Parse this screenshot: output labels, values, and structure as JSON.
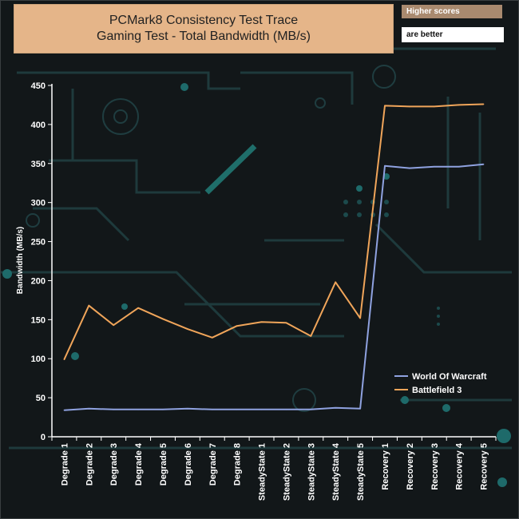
{
  "title_lines": [
    "PCMark8 Consistency Test Trace",
    "Gaming Test - Total Bandwidth (MB/s)"
  ],
  "badge": {
    "line1": "Higher scores",
    "line2": "are better"
  },
  "colors": {
    "series1": "#8fa2e0",
    "series2": "#f0a55a",
    "title_bg": "#e5b589",
    "plot_bg": "#121719"
  },
  "chart_data": {
    "type": "line",
    "ylabel": "Bandwidth (MB/s)",
    "xlabel": "",
    "ylim": [
      0,
      450
    ],
    "yticks": [
      0,
      50,
      100,
      150,
      200,
      250,
      300,
      350,
      400,
      450
    ],
    "grid": false,
    "legend_position": "bottom-right",
    "categories": [
      "Degrade 1",
      "Degrade 2",
      "Degrade 3",
      "Degrade 4",
      "Degrade 5",
      "Degrade 6",
      "Degrade 7",
      "Degrade 8",
      "SteadyState 1",
      "SteadyState 2",
      "SteadyState 3",
      "SteadyState 4",
      "SteadyState 5",
      "Recovery 1",
      "Recovery 2",
      "Recovery 3",
      "Recovery 4",
      "Recovery 5"
    ],
    "series": [
      {
        "name": "World Of Warcraft",
        "color": "#8fa2e0",
        "values": [
          34,
          36,
          35,
          35,
          35,
          36,
          35,
          35,
          35,
          35,
          35,
          37,
          36,
          347,
          344,
          346,
          346,
          349
        ]
      },
      {
        "name": "Battlefield 3",
        "color": "#f0a55a",
        "values": [
          99,
          168,
          143,
          165,
          151,
          138,
          127,
          142,
          147,
          146,
          129,
          198,
          152,
          424,
          423,
          423,
          425,
          426
        ]
      }
    ]
  }
}
